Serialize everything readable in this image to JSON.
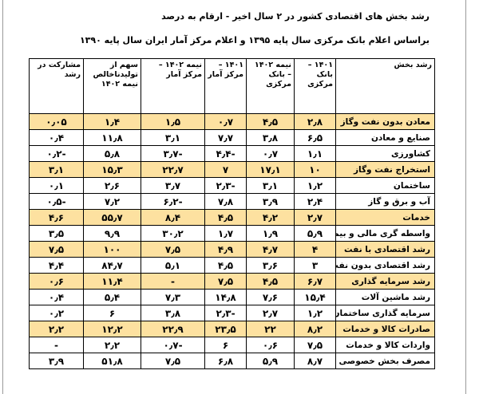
{
  "title": "رشد بخش های اقتصادی کشور در ۲ سال اخیر  - ارقام به درصد",
  "subtitle": "براساس  اعلام بانک مرکزی سال پایه ۱۳۹۵ و اعلام مرکز آمار ایران سال پایه ۱۳۹۰",
  "headers": [
    "رشد بخش",
    "۱۴۰۱ – بانک مرکزی",
    "نیمه ۱۴۰۲ – بانک مرکزی",
    "۱۴۰۱ – مرکز آمار",
    "نیمه ۱۴۰۲ – مرکز آمار",
    "سهم از تولیدناخالص نیمه ۱۴۰۲",
    "مشارکت در رشد"
  ],
  "rows": [
    {
      "highlight": true,
      "cells": [
        "معادن بدون نفت وگاز",
        "۲٫۸",
        "۴٫۵",
        "۰٫۷",
        "۱٫۵",
        "۱٫۴",
        "۰٫۰۵"
      ]
    },
    {
      "highlight": false,
      "cells": [
        "صنایع  و معادن",
        "۶٫۵",
        "۳٫۸",
        "۷٫۷",
        "۳٫۱",
        "۱۱٫۸",
        "۰٫۴"
      ]
    },
    {
      "highlight": false,
      "cells": [
        "کشاورزی",
        "۱٫۱",
        "۰٫۷",
        "-۴٫۴",
        "-۳٫۷",
        "۵٫۸",
        "-۰٫۲"
      ]
    },
    {
      "highlight": true,
      "cells": [
        "استخراج نفت وگاز",
        "۱۰",
        "۱۷٫۱",
        "۷",
        "۲۲٫۷",
        "۱۵٫۳",
        "۳٫۱"
      ]
    },
    {
      "highlight": false,
      "cells": [
        "ساختمان",
        "۱٫۲",
        "۳٫۱",
        "-۲٫۳",
        "۳٫۷",
        "۲٫۶",
        "۰٫۱"
      ]
    },
    {
      "highlight": false,
      "cells": [
        "آب و برق و گاز",
        "۲٫۴",
        "۳٫۹",
        "۷٫۸",
        "-۶٫۲",
        "۷٫۲",
        "-۰٫۵"
      ]
    },
    {
      "highlight": true,
      "cells": [
        "خدمات",
        "۲٫۷",
        "۴٫۲",
        "۴٫۵",
        "۸٫۴",
        "۵۵٫۷",
        "۴٫۶"
      ]
    },
    {
      "highlight": false,
      "cells": [
        "واسطه گری مالی و بیمه",
        "۵٫۹",
        "۱٫۹",
        "۱٫۷",
        "۳۰٫۲",
        "۹٫۹",
        "۳٫۵"
      ]
    },
    {
      "highlight": true,
      "cells": [
        "رشد اقتصادی با نفت",
        "۴",
        "۴٫۷",
        "۴٫۹",
        "۷٫۵",
        "۱۰۰",
        "۷٫۵"
      ]
    },
    {
      "highlight": false,
      "cells": [
        "رشد اقتصادی بدون نفت",
        "۳",
        "۳٫۶",
        "۴٫۵",
        "۵٫۱",
        "۸۴٫۷",
        "۴٫۴"
      ]
    },
    {
      "highlight": true,
      "cells": [
        "رشد سرمایه گذاری",
        "۶٫۷",
        "۴٫۵",
        "۷٫۵",
        "-",
        "۱۱٫۴",
        "۰٫۶"
      ]
    },
    {
      "highlight": false,
      "cells": [
        "رشد ماشین آلات",
        "۱۵٫۴",
        "۷٫۶",
        "۱۴٫۸",
        "۷٫۳",
        "۵٫۴",
        "۰٫۴"
      ]
    },
    {
      "highlight": false,
      "cells": [
        "سرمایه گذاری ساختمان",
        "۱٫۲",
        "۲٫۷",
        "-۲٫۳",
        "۳٫۸",
        "۶",
        "۰٫۲"
      ]
    },
    {
      "highlight": true,
      "cells": [
        "صادرات کالا و خدمات",
        "۸٫۲",
        "۲۲",
        "۲۳٫۵",
        "۲۲٫۹",
        "۱۲٫۲",
        "۲٫۲"
      ]
    },
    {
      "highlight": false,
      "cells": [
        "واردات کالا و خدمات",
        "۷٫۵",
        "۰٫۶",
        "۶",
        "-۰٫۷",
        "۲٫۲",
        "-"
      ]
    },
    {
      "highlight": false,
      "cells": [
        "مصرف بخش خصوصی",
        "۸٫۷",
        "۵٫۹",
        "۶٫۸",
        "۷٫۵",
        "۵۱٫۸",
        "۳٫۹"
      ]
    }
  ],
  "colors": {
    "highlight_row": "#fde1a0",
    "border": "#000000",
    "page_edge_lines": "#9a9a9a"
  }
}
